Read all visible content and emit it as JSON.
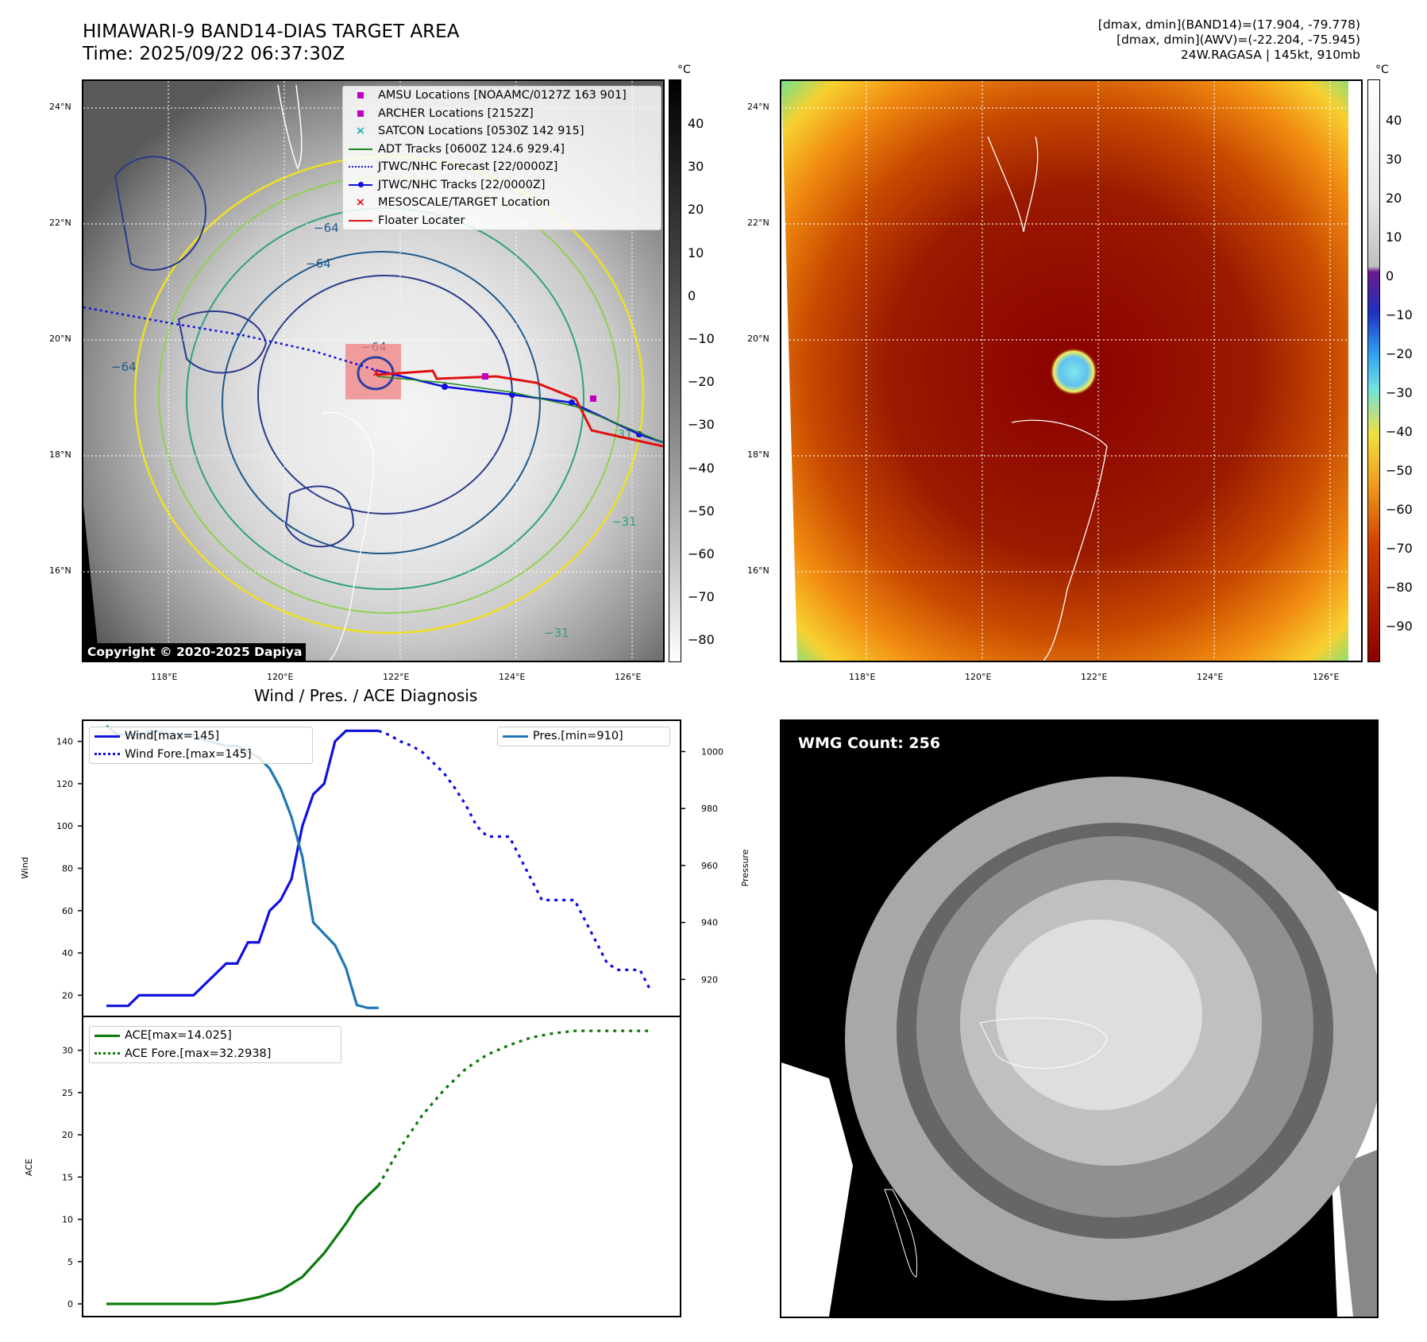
{
  "header": {
    "title": "HIMAWARI-9 BAND14-DIAS TARGET AREA",
    "time": "Time: 2025/09/22 06:37:30Z",
    "info_line1": "[dmax, dmin](BAND14)=(17.904, -79.778)",
    "info_line2": "[dmax, dmin](AWV)=(-22.204, -75.945)",
    "info_line3": "24W.RAGASA | 145kt, 910mb"
  },
  "ir_panel": {
    "unit": "°C",
    "lat_ticks": [
      "24°N",
      "22°N",
      "20°N",
      "18°N",
      "16°N"
    ],
    "lon_ticks": [
      "118°E",
      "120°E",
      "122°E",
      "124°E",
      "126°E"
    ],
    "colorbar_ticks": [
      "40",
      "30",
      "20",
      "10",
      "0",
      "−10",
      "−20",
      "−30",
      "−40",
      "−50",
      "−60",
      "−70",
      "−80"
    ],
    "copyright": "Copyright © 2020-2025 Dapiya",
    "contour_labels": [
      "−64",
      "−64",
      "−64",
      "−64",
      "−31",
      "−31",
      "−31"
    ],
    "legend": [
      {
        "label": "AMSU Locations [NOAAMC/0127Z 163 901]",
        "symbol": "square",
        "color": "#c000c0"
      },
      {
        "label": "ARCHER Locations [2152Z]",
        "symbol": "square",
        "color": "#c000c0"
      },
      {
        "label": "SATCON Locations [0530Z 142 915]",
        "symbol": "x",
        "color": "#20b0b0"
      },
      {
        "label": "ADT Tracks [0600Z 124.6 929.4]",
        "symbol": "line",
        "color": "#1a8a1a"
      },
      {
        "label": "JTWC/NHC Forecast [22/0000Z]",
        "symbol": "dotted",
        "color": "#1010e0"
      },
      {
        "label": "JTWC/NHC Tracks [22/0000Z]",
        "symbol": "line-dot",
        "color": "#1010e0"
      },
      {
        "label": "MESOSCALE/TARGET Location",
        "symbol": "x",
        "color": "#e01010"
      },
      {
        "label": "Floater Locater",
        "symbol": "line",
        "color": "#e01010"
      }
    ]
  },
  "color_panel": {
    "unit": "°C",
    "lat_ticks": [
      "24°N",
      "22°N",
      "20°N",
      "18°N",
      "16°N"
    ],
    "lon_ticks": [
      "118°E",
      "120°E",
      "122°E",
      "124°E",
      "126°E"
    ],
    "colorbar_ticks": [
      "40",
      "30",
      "20",
      "10",
      "0",
      "−10",
      "−20",
      "−30",
      "−40",
      "−50",
      "−60",
      "−70",
      "−80",
      "−90"
    ]
  },
  "wmg_panel": {
    "label": "WMG Count: 256"
  },
  "chart_data": [
    {
      "type": "line",
      "title": "Wind / Pres. / ACE Diagnosis",
      "xlabel": "",
      "ylabel": "Wind",
      "ylabel_right": "Pressure",
      "ylim": [
        10,
        150
      ],
      "ylim_right": [
        907,
        1011
      ],
      "y_ticks": [
        20,
        40,
        60,
        80,
        100,
        120,
        140
      ],
      "y_ticks_right": [
        920,
        940,
        960,
        980,
        1000
      ],
      "series": [
        {
          "name": "Wind[max=145]",
          "style": "solid",
          "color": "#1010e0",
          "axis": "left",
          "x": [
            0,
            1,
            2,
            3,
            4,
            5,
            6,
            7,
            8,
            9,
            10,
            11,
            12,
            13,
            14,
            15,
            16,
            17,
            18,
            19,
            20,
            21,
            22,
            23,
            24,
            25
          ],
          "values": [
            15,
            15,
            15,
            20,
            20,
            20,
            20,
            20,
            20,
            25,
            30,
            35,
            35,
            45,
            45,
            60,
            65,
            75,
            100,
            115,
            120,
            140,
            145,
            145,
            145,
            145
          ]
        },
        {
          "name": "Wind Fore.[max=145]",
          "style": "dotted",
          "color": "#1010e0",
          "axis": "left",
          "x": [
            25,
            26,
            27,
            28,
            29,
            30,
            31,
            32,
            33,
            34,
            35,
            36,
            37,
            38,
            39,
            40,
            41,
            42,
            43,
            44,
            45,
            46,
            47,
            48,
            49,
            50
          ],
          "values": [
            145,
            143,
            140,
            138,
            135,
            130,
            125,
            118,
            110,
            100,
            95,
            95,
            95,
            85,
            75,
            65,
            65,
            65,
            65,
            55,
            45,
            35,
            32,
            32,
            32,
            22
          ]
        },
        {
          "name": "Pres.[min=910]",
          "style": "solid",
          "color": "#1f77b4",
          "axis": "right",
          "x": [
            0,
            1,
            2,
            3,
            4,
            5,
            6,
            7,
            8,
            9,
            10,
            11,
            12,
            13,
            14,
            15,
            16,
            17,
            18,
            19,
            20,
            21,
            22,
            23,
            24,
            25
          ],
          "values": [
            1009,
            1006,
            1006,
            1006,
            1007,
            1007,
            1006,
            1006,
            1006,
            1004,
            1003,
            1002,
            1002,
            1000,
            998,
            994,
            987,
            977,
            963,
            940,
            936,
            932,
            924,
            911,
            910,
            910
          ]
        }
      ]
    },
    {
      "type": "line",
      "xlabel": "",
      "ylabel": "ACE",
      "ylim": [
        -1.5,
        34
      ],
      "y_ticks": [
        0,
        5,
        10,
        15,
        20,
        25,
        30
      ],
      "series": [
        {
          "name": "ACE[max=14.025]",
          "style": "solid",
          "color": "#0a7a0a",
          "x": [
            0,
            2,
            4,
            6,
            8,
            10,
            12,
            14,
            16,
            18,
            20,
            22,
            23,
            24,
            25
          ],
          "values": [
            0,
            0,
            0,
            0,
            0,
            0,
            0.3,
            0.8,
            1.6,
            3.2,
            6,
            9.5,
            11.5,
            12.8,
            14.025
          ]
        },
        {
          "name": "ACE Fore.[max=32.2938]",
          "style": "dotted",
          "color": "#0a7a0a",
          "x": [
            25,
            27,
            29,
            31,
            33,
            35,
            37,
            39,
            41,
            43,
            45,
            47,
            50
          ],
          "values": [
            14.025,
            18.5,
            22.3,
            25.3,
            27.8,
            29.5,
            30.6,
            31.5,
            32,
            32.29,
            32.29,
            32.29,
            32.29
          ]
        }
      ]
    }
  ]
}
